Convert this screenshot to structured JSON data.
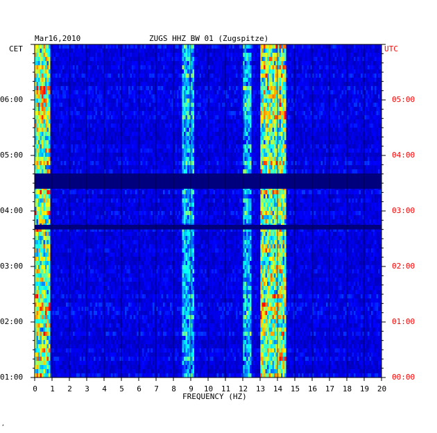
{
  "header": {
    "date": "Mar16,2010",
    "station": "ZUGS HHZ BW 01 (Zugspitze)",
    "left_zone": "CET",
    "right_zone": "UTC"
  },
  "corner_mark": "‚",
  "chart_data": {
    "type": "heatmap",
    "xlabel": "FREQUENCY (HZ)",
    "xlim": [
      0,
      20
    ],
    "x_ticks": [
      "0",
      "1",
      "2",
      "3",
      "4",
      "5",
      "6",
      "7",
      "8",
      "9",
      "10",
      "11",
      "12",
      "13",
      "14",
      "15",
      "16",
      "17",
      "18",
      "19",
      "20"
    ],
    "y_left_ticks": [
      "06:00",
      "05:00",
      "04:00",
      "03:00",
      "02:00",
      "01:00"
    ],
    "y_right_ticks": [
      "05:00",
      "04:00",
      "03:00",
      "02:00",
      "01:00",
      "00:00"
    ],
    "time_range_utc": [
      "00:00",
      "06:00"
    ],
    "colormap": [
      "#00007f",
      "#0000ff",
      "#00ffff",
      "#ffff00",
      "#ff0000"
    ],
    "features": [
      {
        "freq_hz": [
          0.0,
          0.8
        ],
        "level": "high"
      },
      {
        "freq_hz": [
          8.5,
          9.2
        ],
        "level": "medium"
      },
      {
        "freq_hz": [
          12.0,
          12.4
        ],
        "level": "medium"
      },
      {
        "freq_hz": [
          13.0,
          14.4
        ],
        "level": "high"
      }
    ],
    "gaps_utc": [
      [
        "03:35",
        "03:40"
      ],
      [
        "02:40",
        "02:45"
      ]
    ]
  }
}
